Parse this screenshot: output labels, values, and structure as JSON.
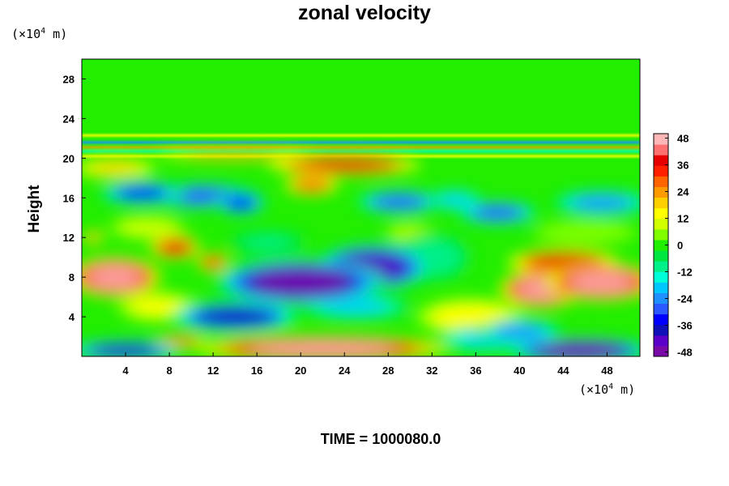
{
  "chart_data": {
    "type": "heatmap",
    "title": "zonal velocity",
    "xlabel": "",
    "ylabel": "Height",
    "x_unit": "(×10",
    "x_unit_exp": "4",
    "x_unit_suffix": " m)",
    "y_unit": "(×10",
    "y_unit_exp": "4",
    "y_unit_suffix": " m)",
    "xlim": [
      0,
      51
    ],
    "ylim": [
      0,
      30
    ],
    "x_ticks": [
      4,
      8,
      12,
      16,
      20,
      24,
      28,
      32,
      36,
      40,
      44,
      48
    ],
    "y_ticks": [
      4,
      8,
      12,
      16,
      20,
      24,
      28
    ],
    "colorbar": {
      "vmin": -50,
      "vmax": 50,
      "ticks": [
        48,
        36,
        24,
        12,
        0,
        -12,
        -24,
        -36,
        -48
      ],
      "colors": [
        "#7a0aa8",
        "#5a00c8",
        "#1010b8",
        "#0000ff",
        "#2a5aff",
        "#1e90ff",
        "#00c8ff",
        "#00ffd8",
        "#00f08a",
        "#00e640",
        "#22ee00",
        "#80ff00",
        "#d0ff00",
        "#ffff00",
        "#ffd000",
        "#ff9a00",
        "#ff6400",
        "#ff2000",
        "#e60000",
        "#ff7070",
        "#ffb6b6"
      ]
    },
    "regions": [
      {
        "x": 20,
        "y": 7.5,
        "v": -50,
        "rx": 6,
        "ry": 1.8
      },
      {
        "x": 26.5,
        "y": 9,
        "v": -45,
        "rx": 4,
        "ry": 1.8
      },
      {
        "x": 45.5,
        "y": 0.6,
        "v": -48,
        "rx": 5,
        "ry": 1
      },
      {
        "x": 14,
        "y": 4,
        "v": -40,
        "rx": 4.5,
        "ry": 1.2
      },
      {
        "x": 4,
        "y": 0.6,
        "v": -36,
        "rx": 4,
        "ry": 0.8
      },
      {
        "x": 3,
        "y": 8,
        "v": 50,
        "rx": 3.3,
        "ry": 1.6
      },
      {
        "x": 22,
        "y": 0.8,
        "v": 50,
        "rx": 9,
        "ry": 1
      },
      {
        "x": 42,
        "y": 6.8,
        "v": 48,
        "rx": 3,
        "ry": 1.5
      },
      {
        "x": 47.5,
        "y": 7.5,
        "v": 48,
        "rx": 4,
        "ry": 1.5
      },
      {
        "x": 44,
        "y": 9.5,
        "v": 40,
        "rx": 4,
        "ry": 1
      },
      {
        "x": 24,
        "y": 19.3,
        "v": 40,
        "rx": 5.5,
        "ry": 0.8
      },
      {
        "x": 8.5,
        "y": 11,
        "v": 40,
        "rx": 1.8,
        "ry": 0.9
      },
      {
        "x": 12,
        "y": 9.5,
        "v": 35,
        "rx": 1.2,
        "ry": 0.7
      },
      {
        "x": 21,
        "y": 17.3,
        "v": 30,
        "rx": 2,
        "ry": 0.8
      },
      {
        "x": 14,
        "y": 20.3,
        "v": 24,
        "rx": 6,
        "ry": 0.4
      },
      {
        "x": 3,
        "y": 19,
        "v": 18,
        "rx": 3,
        "ry": 0.8
      },
      {
        "x": 5.5,
        "y": 16.5,
        "v": -32,
        "rx": 3,
        "ry": 0.9
      },
      {
        "x": 11,
        "y": 16.2,
        "v": -28,
        "rx": 4,
        "ry": 1
      },
      {
        "x": 14.5,
        "y": 15.5,
        "v": -34,
        "rx": 1.8,
        "ry": 0.9
      },
      {
        "x": 29,
        "y": 15.6,
        "v": -30,
        "rx": 3,
        "ry": 0.9
      },
      {
        "x": 38,
        "y": 14.5,
        "v": -30,
        "rx": 2.8,
        "ry": 0.9
      },
      {
        "x": 47.5,
        "y": 15.5,
        "v": -26,
        "rx": 3.5,
        "ry": 1
      },
      {
        "x": 34,
        "y": 15.8,
        "v": -20,
        "rx": 2,
        "ry": 0.8
      },
      {
        "x": 35.5,
        "y": 4,
        "v": 16,
        "rx": 4,
        "ry": 1.5
      },
      {
        "x": 7,
        "y": 5,
        "v": 12,
        "rx": 3,
        "ry": 1.2
      },
      {
        "x": 32,
        "y": 10,
        "v": -10,
        "rx": 3,
        "ry": 2
      },
      {
        "x": 37.5,
        "y": 1.8,
        "v": -20,
        "rx": 4,
        "ry": 1
      },
      {
        "x": 40,
        "y": 2.5,
        "v": -24,
        "rx": 3,
        "ry": 1
      },
      {
        "x": 25,
        "y": 5,
        "v": -18,
        "rx": 4,
        "ry": 1
      },
      {
        "x": 6,
        "y": 13,
        "v": 10,
        "rx": 3,
        "ry": 1
      },
      {
        "x": 1,
        "y": 12,
        "v": 22,
        "rx": 0.8,
        "ry": 0.5
      },
      {
        "x": 9,
        "y": 1.5,
        "v": 28,
        "rx": 2,
        "ry": 0.5
      },
      {
        "x": 17,
        "y": 11.5,
        "v": -8,
        "rx": 3,
        "ry": 1
      },
      {
        "x": 46,
        "y": 12.5,
        "v": 6,
        "rx": 4,
        "ry": 1
      },
      {
        "x": 30,
        "y": 12.5,
        "v": 8,
        "rx": 2,
        "ry": 0.8
      }
    ],
    "layers": [
      {
        "y": 22.3,
        "v": 16,
        "h": 0.25
      },
      {
        "y": 21.6,
        "v": -22,
        "h": 0.25
      },
      {
        "y": 21.1,
        "v": 26,
        "h": 0.2
      },
      {
        "y": 20.7,
        "v": -12,
        "h": 0.2
      },
      {
        "y": 20.2,
        "v": 14,
        "h": 0.25
      }
    ]
  },
  "footer": {
    "time_label": "TIME = 1000080.0"
  }
}
